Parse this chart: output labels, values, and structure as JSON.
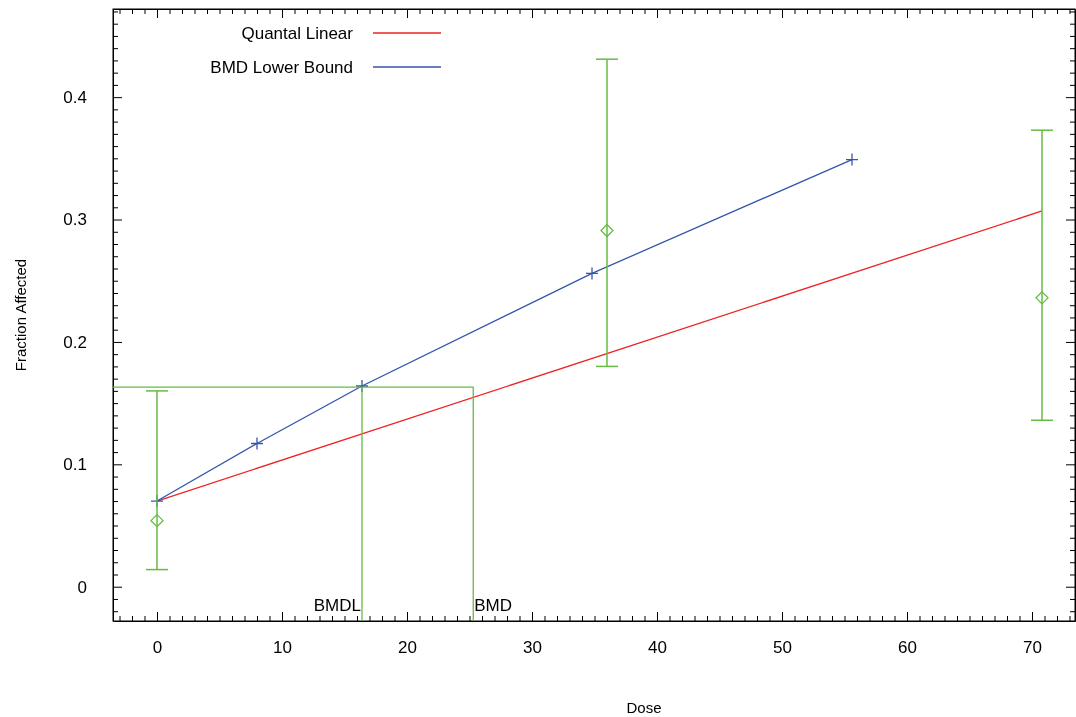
{
  "chart_data": {
    "type": "line",
    "xlabel": "Dose",
    "ylabel": "Fraction Affected",
    "legend": "top left",
    "grid": false,
    "xlim": [
      -3.52,
      73.44
    ],
    "ylim": [
      -0.028,
      0.472
    ],
    "xticks": [
      {
        "value": -3,
        "label": null
      },
      {
        "value": -2,
        "label": null
      },
      {
        "value": -1,
        "label": null
      },
      0,
      {
        "value": 1,
        "label": null
      },
      {
        "value": 2,
        "label": null
      },
      {
        "value": 3,
        "label": null
      },
      {
        "value": 4,
        "label": null
      },
      {
        "value": 5,
        "label": null
      },
      {
        "value": 6,
        "label": null
      },
      {
        "value": 7,
        "label": null
      },
      {
        "value": 8,
        "label": null
      },
      {
        "value": 9,
        "label": null
      },
      10,
      {
        "value": 11,
        "label": null
      },
      {
        "value": 12,
        "label": null
      },
      {
        "value": 13,
        "label": null
      },
      {
        "value": 14,
        "label": null
      },
      {
        "value": 15,
        "label": null
      },
      {
        "value": 16,
        "label": null
      },
      {
        "value": 17,
        "label": null
      },
      {
        "value": 18,
        "label": null
      },
      {
        "value": 19,
        "label": null
      },
      20,
      {
        "value": 21,
        "label": null
      },
      {
        "value": 22,
        "label": null
      },
      {
        "value": 23,
        "label": null
      },
      {
        "value": 24,
        "label": null
      },
      {
        "value": 25,
        "label": null
      },
      {
        "value": 26,
        "label": null
      },
      {
        "value": 27,
        "label": null
      },
      {
        "value": 28,
        "label": null
      },
      {
        "value": 29,
        "label": null
      },
      30,
      {
        "value": 31,
        "label": null
      },
      {
        "value": 32,
        "label": null
      },
      {
        "value": 33,
        "label": null
      },
      {
        "value": 34,
        "label": null
      },
      {
        "value": 35,
        "label": null
      },
      {
        "value": 36,
        "label": null
      },
      {
        "value": 37,
        "label": null
      },
      {
        "value": 38,
        "label": null
      },
      {
        "value": 39,
        "label": null
      },
      40,
      {
        "value": 41,
        "label": null
      },
      {
        "value": 42,
        "label": null
      },
      {
        "value": 43,
        "label": null
      },
      {
        "value": 44,
        "label": null
      },
      {
        "value": 45,
        "label": null
      },
      {
        "value": 46,
        "label": null
      },
      {
        "value": 47,
        "label": null
      },
      {
        "value": 48,
        "label": null
      },
      {
        "value": 49,
        "label": null
      },
      50,
      {
        "value": 51,
        "label": null
      },
      {
        "value": 52,
        "label": null
      },
      {
        "value": 53,
        "label": null
      },
      {
        "value": 54,
        "label": null
      },
      {
        "value": 55,
        "label": null
      },
      {
        "value": 56,
        "label": null
      },
      {
        "value": 57,
        "label": null
      },
      {
        "value": 58,
        "label": null
      },
      {
        "value": 59,
        "label": null
      },
      60,
      {
        "value": 61,
        "label": null
      },
      {
        "value": 62,
        "label": null
      },
      {
        "value": 63,
        "label": null
      },
      {
        "value": 64,
        "label": null
      },
      {
        "value": 65,
        "label": null
      },
      {
        "value": 66,
        "label": null
      },
      {
        "value": 67,
        "label": null
      },
      {
        "value": 68,
        "label": null
      },
      {
        "value": 69,
        "label": null
      },
      70,
      {
        "value": 71,
        "label": null
      },
      {
        "value": 72,
        "label": null
      },
      {
        "value": 73,
        "label": null
      }
    ],
    "yticks": [
      {
        "value": -0.02,
        "label": null
      },
      {
        "value": -0.01,
        "label": null
      },
      0,
      {
        "value": 0.01,
        "label": null
      },
      {
        "value": 0.02,
        "label": null
      },
      {
        "value": 0.03,
        "label": null
      },
      {
        "value": 0.04,
        "label": null
      },
      {
        "value": 0.05,
        "label": null
      },
      {
        "value": 0.06,
        "label": null
      },
      {
        "value": 0.07,
        "label": null
      },
      {
        "value": 0.08,
        "label": null
      },
      {
        "value": 0.09,
        "label": null
      },
      0.1,
      {
        "value": 0.11,
        "label": null
      },
      {
        "value": 0.12,
        "label": null
      },
      {
        "value": 0.13,
        "label": null
      },
      {
        "value": 0.14,
        "label": null
      },
      {
        "value": 0.15,
        "label": null
      },
      {
        "value": 0.16,
        "label": null
      },
      {
        "value": 0.17,
        "label": null
      },
      {
        "value": 0.18,
        "label": null
      },
      {
        "value": 0.19,
        "label": null
      },
      0.2,
      {
        "value": 0.21,
        "label": null
      },
      {
        "value": 0.22,
        "label": null
      },
      {
        "value": 0.23,
        "label": null
      },
      {
        "value": 0.24,
        "label": null
      },
      {
        "value": 0.25,
        "label": null
      },
      {
        "value": 0.26,
        "label": null
      },
      {
        "value": 0.27,
        "label": null
      },
      {
        "value": 0.28,
        "label": null
      },
      {
        "value": 0.29,
        "label": null
      },
      0.3,
      {
        "value": 0.31,
        "label": null
      },
      {
        "value": 0.32,
        "label": null
      },
      {
        "value": 0.33,
        "label": null
      },
      {
        "value": 0.34,
        "label": null
      },
      {
        "value": 0.35,
        "label": null
      },
      {
        "value": 0.36,
        "label": null
      },
      {
        "value": 0.37,
        "label": null
      },
      {
        "value": 0.38,
        "label": null
      },
      {
        "value": 0.39,
        "label": null
      },
      0.4,
      {
        "value": 0.41,
        "label": null
      },
      {
        "value": 0.42,
        "label": null
      },
      {
        "value": 0.43,
        "label": null
      },
      {
        "value": 0.44,
        "label": null
      },
      {
        "value": 0.45,
        "label": null
      },
      {
        "value": 0.46,
        "label": null
      },
      {
        "value": 0.47,
        "label": null
      }
    ],
    "series": [
      {
        "name": "Quantal Linear",
        "color": "#ee2222",
        "marker": "none",
        "x": [
          0,
          70.8
        ],
        "values": [
          0.07,
          0.307
        ]
      },
      {
        "name": "BMD Lower Bound",
        "color": "#3355aa",
        "marker": "cross",
        "x": [
          0,
          8,
          16.4,
          34.8,
          55.6
        ],
        "values": [
          0.07,
          0.117,
          0.164,
          0.256,
          0.349
        ]
      },
      {
        "type": "scatter",
        "color": "#66bb44",
        "marker": "diamond",
        "x": [
          0,
          36,
          70.8
        ],
        "values": [
          0.054,
          0.291,
          0.236
        ],
        "errors": [
          [
            0.014,
            0.16
          ],
          [
            0.18,
            0.431
          ],
          [
            0.136,
            0.373
          ]
        ]
      },
      {
        "color": "#66bb44",
        "marker": "none",
        "x": [
          -3.52,
          25.3,
          25.3
        ],
        "values": [
          0.163,
          0.163,
          -0.028
        ]
      },
      {
        "color": "#66bb44",
        "marker": "none",
        "x": [
          16.4,
          16.4
        ],
        "values": [
          0.163,
          -0.028
        ]
      }
    ],
    "annotations": [
      {
        "text": "BMDL",
        "x": 16.4,
        "y": -0.02
      },
      {
        "text": "BMD",
        "x": 25.3,
        "y": -0.02
      }
    ]
  }
}
